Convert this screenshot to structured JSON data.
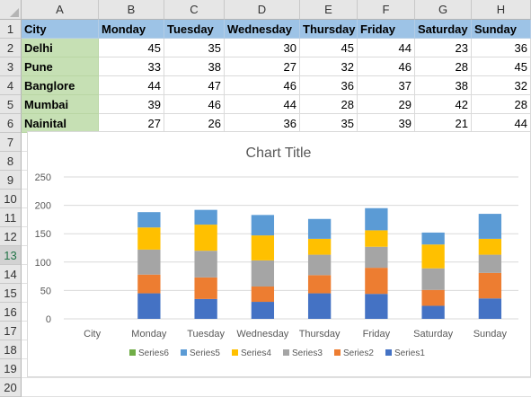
{
  "columns": [
    "A",
    "B",
    "C",
    "D",
    "E",
    "F",
    "G",
    "H"
  ],
  "rows": [
    "1",
    "2",
    "3",
    "4",
    "5",
    "6",
    "7",
    "8",
    "9",
    "10",
    "11",
    "12",
    "13",
    "14",
    "15",
    "16",
    "17",
    "18",
    "19",
    "20"
  ],
  "selected_row": "13",
  "table": {
    "header": [
      "City",
      "Monday",
      "Tuesday",
      "Wednesday",
      "Thursday",
      "Friday",
      "Saturday",
      "Sunday"
    ],
    "data": [
      {
        "city": "Delhi",
        "values": [
          45,
          35,
          30,
          45,
          44,
          23,
          36
        ]
      },
      {
        "city": "Pune",
        "values": [
          33,
          38,
          27,
          32,
          46,
          28,
          45
        ]
      },
      {
        "city": "Banglore",
        "values": [
          44,
          47,
          46,
          36,
          37,
          38,
          32
        ]
      },
      {
        "city": "Mumbai",
        "values": [
          39,
          46,
          44,
          28,
          29,
          42,
          28
        ]
      },
      {
        "city": "Nainital",
        "values": [
          27,
          26,
          36,
          35,
          39,
          21,
          44
        ]
      }
    ]
  },
  "chart_data": {
    "type": "bar",
    "stacked": true,
    "title": "Chart Title",
    "categories": [
      "City",
      "Monday",
      "Tuesday",
      "Wednesday",
      "Thursday",
      "Friday",
      "Saturday",
      "Sunday"
    ],
    "ylim": [
      0,
      250
    ],
    "yticks": [
      0,
      50,
      100,
      150,
      200,
      250
    ],
    "grid": true,
    "legend_position": "bottom",
    "series": [
      {
        "name": "Series1",
        "color": "#4472c4",
        "values": [
          0,
          45,
          35,
          30,
          45,
          44,
          23,
          36
        ]
      },
      {
        "name": "Series2",
        "color": "#ed7d31",
        "values": [
          0,
          33,
          38,
          27,
          32,
          46,
          28,
          45
        ]
      },
      {
        "name": "Series3",
        "color": "#a5a5a5",
        "values": [
          0,
          44,
          47,
          46,
          36,
          37,
          38,
          32
        ]
      },
      {
        "name": "Series4",
        "color": "#ffc000",
        "values": [
          0,
          39,
          46,
          44,
          28,
          29,
          42,
          28
        ]
      },
      {
        "name": "Series5",
        "color": "#5b9bd5",
        "values": [
          0,
          27,
          26,
          36,
          35,
          39,
          21,
          44
        ]
      },
      {
        "name": "Series6",
        "color": "#70ad47",
        "values": [
          0,
          0,
          0,
          0,
          0,
          0,
          0,
          0
        ]
      }
    ],
    "legend_order": [
      "Series6",
      "Series5",
      "Series4",
      "Series3",
      "Series2",
      "Series1"
    ]
  }
}
